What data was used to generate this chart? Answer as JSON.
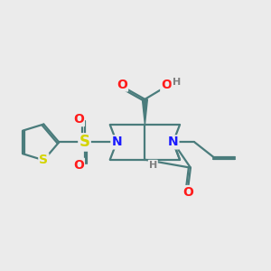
{
  "bg_color": "#ebebeb",
  "bond_color": "#4a7c7c",
  "bond_width": 1.6,
  "atom_colors": {
    "N": "#1a1aff",
    "O": "#ff1a1a",
    "S_sulfonyl": "#d4d400",
    "S_thio": "#d4d400",
    "H": "#808080",
    "C": "#4a7c7c"
  }
}
